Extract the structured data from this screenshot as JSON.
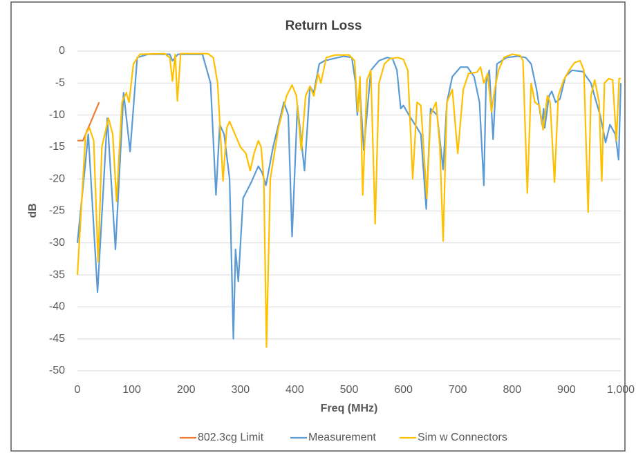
{
  "chart_data": {
    "type": "line",
    "title": "Return Loss",
    "xlabel": "Freq (MHz)",
    "ylabel": "dB",
    "xlim": [
      0,
      1000
    ],
    "xticks": [
      0,
      100,
      200,
      300,
      400,
      500,
      600,
      700,
      800,
      900,
      {
        "value": 1000,
        "label": "1,000"
      }
    ],
    "ylim": [
      -50,
      0
    ],
    "yticks": [
      0,
      -5,
      -10,
      -15,
      -20,
      -25,
      -30,
      -35,
      -40,
      -45,
      -50
    ],
    "grid": true,
    "legend": "bottom",
    "series": [
      {
        "name": "802.3cg Limit",
        "color": "#ed7d31",
        "x": [
          0,
          10,
          15,
          20,
          25,
          30,
          35,
          40
        ],
        "values": [
          -14,
          -14,
          -13,
          -12,
          -11,
          -10,
          -9,
          -8
        ]
      },
      {
        "name": "Measurement",
        "color": "#5b9bd5",
        "x": [
          0,
          20,
          37,
          55,
          70,
          85,
          97,
          110,
          130,
          170,
          175,
          185,
          230,
          245,
          255,
          262,
          270,
          280,
          287,
          291,
          296,
          305,
          320,
          333,
          340,
          347,
          360,
          380,
          388,
          395,
          405,
          418,
          428,
          435,
          445,
          455,
          470,
          490,
          505,
          512,
          515,
          520,
          527,
          540,
          555,
          570,
          580,
          588,
          595,
          600,
          610,
          625,
          632,
          642,
          650,
          662,
          673,
          680,
          690,
          705,
          718,
          730,
          740,
          748,
          752,
          758,
          765,
          772,
          790,
          810,
          825,
          835,
          845,
          855,
          858,
          860,
          868,
          873,
          880,
          888,
          898,
          910,
          930,
          945,
          955,
          962,
          972,
          980,
          990,
          996,
          1000
        ],
        "values": [
          -30,
          -13,
          -37.7,
          -10.5,
          -31,
          -6.5,
          -15.7,
          -1,
          -0.5,
          -0.5,
          -1.5,
          -0.5,
          -0.5,
          -5,
          -22.5,
          -11.5,
          -13,
          -20,
          -45,
          -31,
          -36,
          -23,
          -20.5,
          -18,
          -19,
          -21,
          -15,
          -8,
          -10,
          -29,
          -8.5,
          -18.7,
          -5.5,
          -6.5,
          -2,
          -1.5,
          -1.2,
          -0.8,
          -1,
          -5,
          -10,
          -6,
          -15.5,
          -3,
          -1.5,
          -1,
          -1.2,
          -3,
          -9,
          -8.5,
          -10,
          -12,
          -13,
          -24.7,
          -9,
          -10,
          -18.5,
          -8,
          -4,
          -2.5,
          -2.5,
          -4,
          -8,
          -21,
          -5,
          -3,
          -13.8,
          -2,
          -1,
          -0.8,
          -1,
          -2,
          -6,
          -11.5,
          -9,
          -12,
          -7,
          -6.3,
          -8,
          -7.5,
          -4,
          -3,
          -3.2,
          -5,
          -8,
          -10,
          -14.3,
          -11.5,
          -13,
          -17,
          -5
        ]
      },
      {
        "name": "Sim w Connectors",
        "color": "#ffc000",
        "x": [
          0,
          15,
          22,
          30,
          38,
          45,
          57,
          65,
          72,
          82,
          90,
          95,
          103,
          115,
          160,
          170,
          175,
          180,
          184,
          190,
          240,
          250,
          258,
          268,
          275,
          280,
          290,
          300,
          310,
          318,
          325,
          333,
          338,
          343,
          348,
          355,
          370,
          385,
          395,
          403,
          412,
          420,
          428,
          435,
          443,
          448,
          458,
          475,
          500,
          510,
          516,
          520,
          525,
          533,
          540,
          548,
          555,
          565,
          575,
          590,
          600,
          608,
          617,
          625,
          632,
          643,
          650,
          660,
          667,
          673,
          680,
          690,
          700,
          710,
          720,
          735,
          742,
          748,
          755,
          762,
          768,
          775,
          785,
          800,
          815,
          820,
          828,
          835,
          842,
          850,
          857,
          865,
          870,
          878,
          885,
          895,
          905,
          915,
          925,
          932,
          940,
          945,
          952,
          960,
          965,
          970,
          978,
          985,
          992,
          997,
          1000
        ],
        "values": [
          -35,
          -13,
          -12,
          -14,
          -33,
          -15,
          -10.5,
          -13,
          -23.5,
          -8,
          -6.5,
          -8,
          -2,
          -0.5,
          -0.4,
          -1,
          -4.7,
          -0.5,
          -7.8,
          -0.4,
          -0.4,
          -1,
          -5,
          -20.3,
          -12,
          -11,
          -13,
          -15,
          -16,
          -18.7,
          -16,
          -14,
          -15,
          -20,
          -46.3,
          -20,
          -12,
          -7,
          -5.3,
          -7,
          -15.5,
          -7,
          -5.5,
          -7,
          -3.5,
          -5,
          -1,
          -0.6,
          -0.6,
          -1.5,
          -9.5,
          -4,
          -22.5,
          -4.5,
          -3,
          -27,
          -5,
          -2,
          -1.2,
          -1,
          -1.3,
          -3,
          -20,
          -8,
          -8.5,
          -23,
          -10,
          -8,
          -15,
          -29.7,
          -8,
          -6,
          -16,
          -6,
          -3.5,
          -3.3,
          -2.5,
          -5,
          -3.5,
          -9.5,
          -6,
          -3,
          -1,
          -0.5,
          -0.7,
          -1.5,
          -22.2,
          -5,
          -8,
          -8.5,
          -12.3,
          -7,
          -8,
          -20.5,
          -7,
          -4.5,
          -3,
          -1.8,
          -1.5,
          -3,
          -25.2,
          -7,
          -4.5,
          -8,
          -20.3,
          -5,
          -4.3,
          -4.5,
          -14,
          -4.3,
          -4.3
        ]
      }
    ]
  }
}
